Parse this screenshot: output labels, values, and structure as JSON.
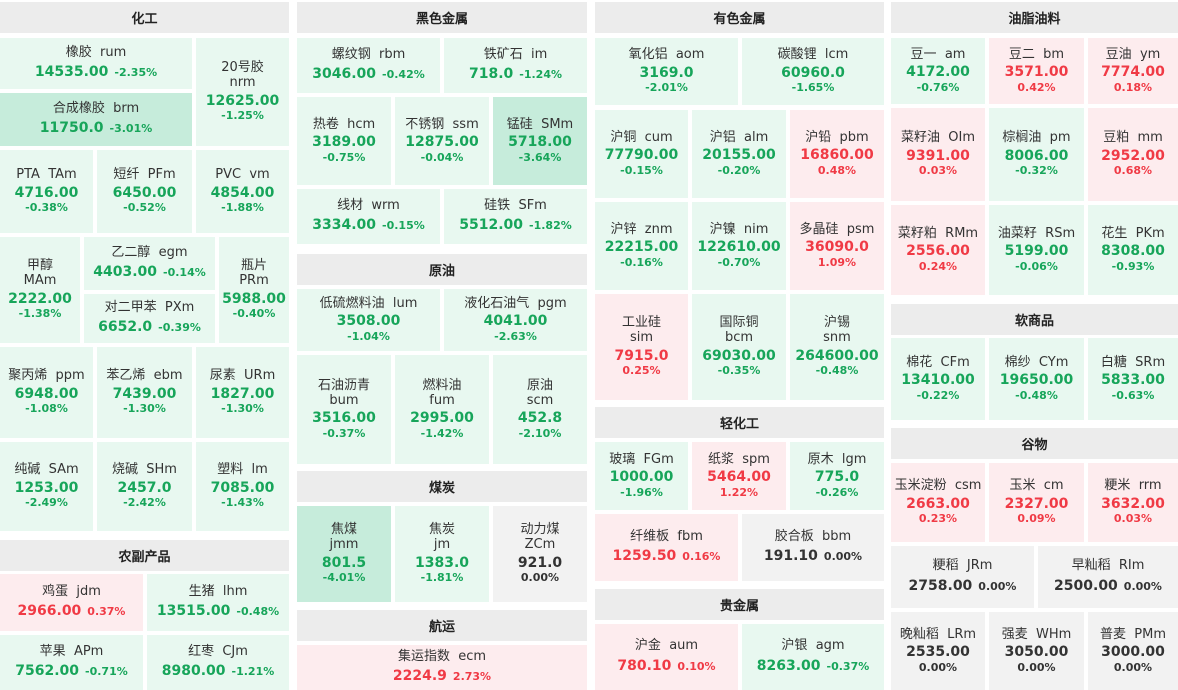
{
  "colors": {
    "up": "#f03a45",
    "down": "#17a55a",
    "flat": "#333333"
  },
  "sectors": [
    {
      "name": "化工"
    },
    {
      "name": "农副产品"
    },
    {
      "name": "黑色金属"
    },
    {
      "name": "原油"
    },
    {
      "name": "煤炭"
    },
    {
      "name": "航运"
    },
    {
      "name": "有色金属"
    },
    {
      "name": "轻化工"
    },
    {
      "name": "贵金属"
    },
    {
      "name": "油脂油料"
    },
    {
      "name": "软商品"
    },
    {
      "name": "谷物"
    }
  ],
  "tiles": [
    {
      "cn": "橡胶",
      "code": "rum",
      "price": "14535.00",
      "change": "-2.35%",
      "dir": "down"
    },
    {
      "cn": "20号胶",
      "code": "nrm",
      "price": "12625.00",
      "change": "-1.25%",
      "dir": "down"
    },
    {
      "cn": "合成橡胶",
      "code": "brm",
      "price": "11750.0",
      "change": "-3.01%",
      "dir": "down"
    },
    {
      "cn": "PTA",
      "code": "TAm",
      "price": "4716.00",
      "change": "-0.38%",
      "dir": "down"
    },
    {
      "cn": "短纤",
      "code": "PFm",
      "price": "6450.00",
      "change": "-0.52%",
      "dir": "down"
    },
    {
      "cn": "PVC",
      "code": "vm",
      "price": "4854.00",
      "change": "-1.88%",
      "dir": "down"
    },
    {
      "cn": "甲醇",
      "code": "MAm",
      "price": "2222.00",
      "change": "-1.38%",
      "dir": "down"
    },
    {
      "cn": "乙二醇",
      "code": "egm",
      "price": "4403.00",
      "change": "-0.14%",
      "dir": "down"
    },
    {
      "cn": "瓶片",
      "code": "PRm",
      "price": "5988.00",
      "change": "-0.40%",
      "dir": "down"
    },
    {
      "cn": "对二甲苯",
      "code": "PXm",
      "price": "6652.0",
      "change": "-0.39%",
      "dir": "down"
    },
    {
      "cn": "聚丙烯",
      "code": "ppm",
      "price": "6948.00",
      "change": "-1.08%",
      "dir": "down"
    },
    {
      "cn": "苯乙烯",
      "code": "ebm",
      "price": "7439.00",
      "change": "-1.30%",
      "dir": "down"
    },
    {
      "cn": "尿素",
      "code": "URm",
      "price": "1827.00",
      "change": "-1.30%",
      "dir": "down"
    },
    {
      "cn": "纯碱",
      "code": "SAm",
      "price": "1253.00",
      "change": "-2.49%",
      "dir": "down"
    },
    {
      "cn": "烧碱",
      "code": "SHm",
      "price": "2457.0",
      "change": "-2.42%",
      "dir": "down"
    },
    {
      "cn": "塑料",
      "code": "lm",
      "price": "7085.00",
      "change": "-1.43%",
      "dir": "down"
    },
    {
      "cn": "鸡蛋",
      "code": "jdm",
      "price": "2966.00",
      "change": "0.37%",
      "dir": "up"
    },
    {
      "cn": "生猪",
      "code": "lhm",
      "price": "13515.00",
      "change": "-0.48%",
      "dir": "down"
    },
    {
      "cn": "苹果",
      "code": "APm",
      "price": "7562.00",
      "change": "-0.71%",
      "dir": "down"
    },
    {
      "cn": "红枣",
      "code": "CJm",
      "price": "8980.00",
      "change": "-1.21%",
      "dir": "down"
    },
    {
      "cn": "螺纹钢",
      "code": "rbm",
      "price": "3046.00",
      "change": "-0.42%",
      "dir": "down"
    },
    {
      "cn": "铁矿石",
      "code": "im",
      "price": "718.0",
      "change": "-1.24%",
      "dir": "down"
    },
    {
      "cn": "热卷",
      "code": "hcm",
      "price": "3189.00",
      "change": "-0.75%",
      "dir": "down"
    },
    {
      "cn": "不锈钢",
      "code": "ssm",
      "price": "12875.00",
      "change": "-0.04%",
      "dir": "down"
    },
    {
      "cn": "锰硅",
      "code": "SMm",
      "price": "5718.00",
      "change": "-3.64%",
      "dir": "down"
    },
    {
      "cn": "线材",
      "code": "wrm",
      "price": "3334.00",
      "change": "-0.15%",
      "dir": "down"
    },
    {
      "cn": "硅铁",
      "code": "SFm",
      "price": "5512.00",
      "change": "-1.82%",
      "dir": "down"
    },
    {
      "cn": "低硫燃料油",
      "code": "lum",
      "price": "3508.00",
      "change": "-1.04%",
      "dir": "down"
    },
    {
      "cn": "液化石油气",
      "code": "pgm",
      "price": "4041.00",
      "change": "-2.63%",
      "dir": "down"
    },
    {
      "cn": "石油沥青",
      "code": "bum",
      "price": "3516.00",
      "change": "-0.37%",
      "dir": "down"
    },
    {
      "cn": "燃料油",
      "code": "fum",
      "price": "2995.00",
      "change": "-1.42%",
      "dir": "down"
    },
    {
      "cn": "原油",
      "code": "scm",
      "price": "452.8",
      "change": "-2.10%",
      "dir": "down"
    },
    {
      "cn": "焦煤",
      "code": "jmm",
      "price": "801.5",
      "change": "-4.01%",
      "dir": "down"
    },
    {
      "cn": "焦炭",
      "code": "jm",
      "price": "1383.0",
      "change": "-1.81%",
      "dir": "down"
    },
    {
      "cn": "动力煤",
      "code": "ZCm",
      "price": "921.0",
      "change": "0.00%",
      "dir": "flat"
    },
    {
      "cn": "集运指数",
      "code": "ecm",
      "price": "2224.9",
      "change": "2.73%",
      "dir": "up"
    },
    {
      "cn": "氧化铝",
      "code": "aom",
      "price": "3169.0",
      "change": "-2.01%",
      "dir": "down"
    },
    {
      "cn": "碳酸锂",
      "code": "lcm",
      "price": "60960.0",
      "change": "-1.65%",
      "dir": "down"
    },
    {
      "cn": "沪铜",
      "code": "cum",
      "price": "77790.00",
      "change": "-0.15%",
      "dir": "down"
    },
    {
      "cn": "沪铝",
      "code": "alm",
      "price": "20155.00",
      "change": "-0.20%",
      "dir": "down"
    },
    {
      "cn": "沪铅",
      "code": "pbm",
      "price": "16860.00",
      "change": "0.48%",
      "dir": "up"
    },
    {
      "cn": "沪锌",
      "code": "znm",
      "price": "22215.00",
      "change": "-0.16%",
      "dir": "down"
    },
    {
      "cn": "沪镍",
      "code": "nim",
      "price": "122610.00",
      "change": "-0.70%",
      "dir": "down"
    },
    {
      "cn": "多晶硅",
      "code": "psm",
      "price": "36090.0",
      "change": "1.09%",
      "dir": "up"
    },
    {
      "cn": "工业硅",
      "code": "sim",
      "price": "7915.0",
      "change": "0.25%",
      "dir": "up"
    },
    {
      "cn": "国际铜",
      "code": "bcm",
      "price": "69030.00",
      "change": "-0.35%",
      "dir": "down"
    },
    {
      "cn": "沪锡",
      "code": "snm",
      "price": "264600.00",
      "change": "-0.48%",
      "dir": "down"
    },
    {
      "cn": "玻璃",
      "code": "FGm",
      "price": "1000.00",
      "change": "-1.96%",
      "dir": "down"
    },
    {
      "cn": "纸浆",
      "code": "spm",
      "price": "5464.00",
      "change": "1.22%",
      "dir": "up"
    },
    {
      "cn": "原木",
      "code": "lgm",
      "price": "775.0",
      "change": "-0.26%",
      "dir": "down"
    },
    {
      "cn": "纤维板",
      "code": "fbm",
      "price": "1259.50",
      "change": "0.16%",
      "dir": "up"
    },
    {
      "cn": "胶合板",
      "code": "bbm",
      "price": "191.10",
      "change": "0.00%",
      "dir": "flat"
    },
    {
      "cn": "沪金",
      "code": "aum",
      "price": "780.10",
      "change": "0.10%",
      "dir": "up"
    },
    {
      "cn": "沪银",
      "code": "agm",
      "price": "8263.00",
      "change": "-0.37%",
      "dir": "down"
    },
    {
      "cn": "豆一",
      "code": "am",
      "price": "4172.00",
      "change": "-0.76%",
      "dir": "down"
    },
    {
      "cn": "豆二",
      "code": "bm",
      "price": "3571.00",
      "change": "0.42%",
      "dir": "up"
    },
    {
      "cn": "豆油",
      "code": "ym",
      "price": "7774.00",
      "change": "0.18%",
      "dir": "up"
    },
    {
      "cn": "菜籽油",
      "code": "OIm",
      "price": "9391.00",
      "change": "0.03%",
      "dir": "up"
    },
    {
      "cn": "棕榈油",
      "code": "pm",
      "price": "8006.00",
      "change": "-0.32%",
      "dir": "down"
    },
    {
      "cn": "豆粕",
      "code": "mm",
      "price": "2952.00",
      "change": "0.68%",
      "dir": "up"
    },
    {
      "cn": "菜籽粕",
      "code": "RMm",
      "price": "2556.00",
      "change": "0.24%",
      "dir": "up"
    },
    {
      "cn": "油菜籽",
      "code": "RSm",
      "price": "5199.00",
      "change": "-0.06%",
      "dir": "down"
    },
    {
      "cn": "花生",
      "code": "PKm",
      "price": "8308.00",
      "change": "-0.93%",
      "dir": "down"
    },
    {
      "cn": "棉花",
      "code": "CFm",
      "price": "13410.00",
      "change": "-0.22%",
      "dir": "down"
    },
    {
      "cn": "棉纱",
      "code": "CYm",
      "price": "19650.00",
      "change": "-0.48%",
      "dir": "down"
    },
    {
      "cn": "白糖",
      "code": "SRm",
      "price": "5833.00",
      "change": "-0.63%",
      "dir": "down"
    },
    {
      "cn": "玉米淀粉",
      "code": "csm",
      "price": "2663.00",
      "change": "0.23%",
      "dir": "up"
    },
    {
      "cn": "玉米",
      "code": "cm",
      "price": "2327.00",
      "change": "0.09%",
      "dir": "up"
    },
    {
      "cn": "粳米",
      "code": "rrm",
      "price": "3632.00",
      "change": "0.03%",
      "dir": "up"
    },
    {
      "cn": "粳稻",
      "code": "JRm",
      "price": "2758.00",
      "change": "0.00%",
      "dir": "flat"
    },
    {
      "cn": "早籼稻",
      "code": "RIm",
      "price": "2500.00",
      "change": "0.00%",
      "dir": "flat"
    },
    {
      "cn": "晚籼稻",
      "code": "LRm",
      "price": "2535.00",
      "change": "0.00%",
      "dir": "flat"
    },
    {
      "cn": "强麦",
      "code": "WHm",
      "price": "3050.00",
      "change": "0.00%",
      "dir": "flat"
    },
    {
      "cn": "普麦",
      "code": "PMm",
      "price": "3000.00",
      "change": "0.00%",
      "dir": "flat"
    }
  ]
}
